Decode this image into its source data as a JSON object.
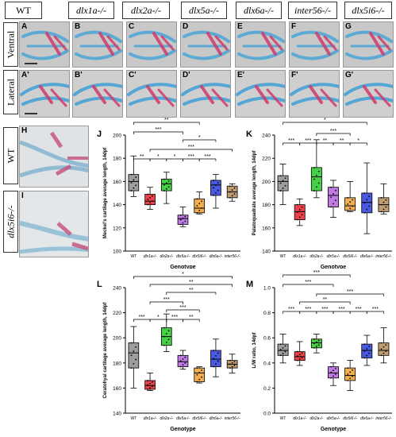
{
  "headers": [
    "WT",
    "dlx1a-/-",
    "dlx2a-/-",
    "dlx5a-/-",
    "dlx6a-/-",
    "inter56-/-",
    "dlx5i6-/-"
  ],
  "row_labels": [
    "Ventral",
    "Lateral"
  ],
  "photo_panels": {
    "row1": [
      "A",
      "B",
      "C",
      "D",
      "E",
      "F",
      "G"
    ],
    "row2": [
      "A'",
      "B'",
      "C'",
      "D'",
      "E'",
      "F'",
      "G'"
    ],
    "zoom": [
      "H",
      "I"
    ]
  },
  "zoom_labels": [
    "WT",
    "dlx5i6-/-"
  ],
  "colors": {
    "WT": "#8c8c8c",
    "dlx1a": "#e8212a",
    "dlx2a": "#26c826",
    "dlx5a": "#b464dc",
    "dlx5i6": "#f0a030",
    "dlx6a": "#2a3cd8",
    "inter56": "#b48c5a"
  },
  "chart_data": [
    {
      "panel": "J",
      "type": "box",
      "ylabel": "Meckel's cartilage average length, 14dpf",
      "xlabel": "Genotype",
      "categories": [
        "WT",
        "dlx1a-/-",
        "dlx2a-/-",
        "dlx5a-/-",
        "dlx5i6-/-",
        "dlx6a-/-",
        "inter56-/-"
      ],
      "yticks": [
        100,
        120,
        140,
        160,
        180,
        200
      ],
      "ylim": [
        100,
        200
      ],
      "boxes": [
        {
          "min": 147,
          "q1": 152,
          "median": 160,
          "q3": 166,
          "max": 182
        },
        {
          "min": 136,
          "q1": 140,
          "median": 143,
          "q3": 149,
          "max": 155
        },
        {
          "min": 141,
          "q1": 152,
          "median": 158,
          "q3": 162,
          "max": 168
        },
        {
          "min": 121,
          "q1": 123,
          "median": 128,
          "q3": 131,
          "max": 138
        },
        {
          "min": 132,
          "q1": 133,
          "median": 137,
          "q3": 145,
          "max": 151
        },
        {
          "min": 137,
          "q1": 148,
          "median": 157,
          "q3": 161,
          "max": 166
        },
        {
          "min": 143,
          "q1": 146,
          "median": 151,
          "q3": 156,
          "max": 158
        }
      ],
      "significance": [
        "**",
        "***",
        "*",
        "***",
        "**",
        "*",
        "*",
        "***",
        "***"
      ]
    },
    {
      "panel": "K",
      "type": "box",
      "ylabel": "Palatoquadrate average length, 14dpf",
      "xlabel": "Genotype",
      "categories": [
        "WT",
        "dlx1a-/-",
        "dlx2a-/-",
        "dlx5a-/-",
        "dlx5i6-/-",
        "dlx6a-/-",
        "inter56-/-"
      ],
      "yticks": [
        140,
        160,
        180,
        200,
        220,
        240
      ],
      "ylim": [
        140,
        240
      ],
      "boxes": [
        {
          "min": 180,
          "q1": 192,
          "median": 200,
          "q3": 205,
          "max": 215
        },
        {
          "min": 162,
          "q1": 167,
          "median": 174,
          "q3": 180,
          "max": 185
        },
        {
          "min": 186,
          "q1": 192,
          "median": 204,
          "q3": 212,
          "max": 236
        },
        {
          "min": 169,
          "q1": 178,
          "median": 188,
          "q3": 195,
          "max": 201
        },
        {
          "min": 174,
          "q1": 175,
          "median": 179,
          "q3": 186,
          "max": 200
        },
        {
          "min": 155,
          "q1": 173,
          "median": 182,
          "q3": 190,
          "max": 216
        },
        {
          "min": 172,
          "q1": 174,
          "median": 180,
          "q3": 186,
          "max": 198
        }
      ],
      "significance": [
        "*",
        "***",
        "***",
        "***",
        "**",
        "**",
        "*"
      ]
    },
    {
      "panel": "L",
      "type": "box",
      "ylabel": "Ceratohyal cartilage average length, 14dpf",
      "xlabel": "Genotype",
      "categories": [
        "WT",
        "dlx1a-/-",
        "dlx2a-/-",
        "dlx5a-/-",
        "dlx5i6-/-",
        "dlx6a-/-",
        "inter56-/-"
      ],
      "yticks": [
        140,
        160,
        180,
        200,
        220,
        240
      ],
      "ylim": [
        140,
        240
      ],
      "boxes": [
        {
          "min": 160,
          "q1": 176,
          "median": 188,
          "q3": 196,
          "max": 209
        },
        {
          "min": 158,
          "q1": 159,
          "median": 162,
          "q3": 166,
          "max": 172
        },
        {
          "min": 189,
          "q1": 194,
          "median": 201,
          "q3": 208,
          "max": 219
        },
        {
          "min": 175,
          "q1": 177,
          "median": 181,
          "q3": 186,
          "max": 190
        },
        {
          "min": 164,
          "q1": 165,
          "median": 172,
          "q3": 176,
          "max": 177
        },
        {
          "min": 169,
          "q1": 177,
          "median": 183,
          "q3": 190,
          "max": 199
        },
        {
          "min": 172,
          "q1": 176,
          "median": 179,
          "q3": 182,
          "max": 187
        }
      ],
      "significance": [
        "*",
        "**",
        "**",
        "***",
        "***",
        "***",
        "*",
        "***",
        "**"
      ]
    },
    {
      "panel": "M",
      "type": "box",
      "ylabel": "L/W ratio, 14dpf",
      "xlabel": "Genotype",
      "categories": [
        "WT",
        "dlx1a-/-",
        "dlx2a-/-",
        "dlx5a-/-",
        "dlx5i6-/-",
        "dlx6a-/-",
        "inter56-/-"
      ],
      "yticks": [
        0.0,
        0.2,
        0.4,
        0.6,
        0.8,
        1.0
      ],
      "ylim": [
        0.0,
        1.0
      ],
      "boxes": [
        {
          "min": 0.4,
          "q1": 0.46,
          "median": 0.5,
          "q3": 0.55,
          "max": 0.63
        },
        {
          "min": 0.38,
          "q1": 0.42,
          "median": 0.45,
          "q3": 0.49,
          "max": 0.57
        },
        {
          "min": 0.48,
          "q1": 0.52,
          "median": 0.56,
          "q3": 0.59,
          "max": 0.63
        },
        {
          "min": 0.22,
          "q1": 0.28,
          "median": 0.32,
          "q3": 0.37,
          "max": 0.4
        },
        {
          "min": 0.18,
          "q1": 0.26,
          "median": 0.3,
          "q3": 0.36,
          "max": 0.42
        },
        {
          "min": 0.38,
          "q1": 0.44,
          "median": 0.5,
          "q3": 0.55,
          "max": 0.62
        },
        {
          "min": 0.4,
          "q1": 0.46,
          "median": 0.5,
          "q3": 0.56,
          "max": 0.68
        }
      ],
      "significance": [
        "***",
        "***",
        "***",
        "**",
        "***",
        "***",
        "***",
        "***",
        "***",
        "***"
      ]
    }
  ]
}
